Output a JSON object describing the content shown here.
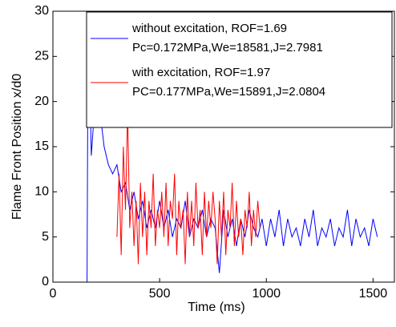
{
  "chart_data": {
    "type": "line",
    "xlabel": "Time (ms)",
    "ylabel": "Flame Front Position x/d0",
    "xlim": [
      0,
      1600
    ],
    "xticks": [
      0,
      500,
      1000,
      1500
    ],
    "ylim": [
      0,
      30
    ],
    "yticks": [
      0,
      5,
      10,
      15,
      20,
      25,
      30
    ],
    "grid": false,
    "legend": "upper right",
    "series": [
      {
        "name": "without excitation, ROF=1.69\nPc=0.172MPa,We=18581,J=2.7981",
        "color": "#0000ff",
        "x": [
          160,
          165,
          180,
          200,
          210,
          220,
          240,
          260,
          280,
          300,
          320,
          340,
          360,
          380,
          400,
          420,
          440,
          460,
          480,
          500,
          520,
          540,
          560,
          580,
          600,
          620,
          640,
          660,
          680,
          700,
          720,
          740,
          760,
          780,
          800,
          820,
          840,
          860,
          880,
          900,
          920,
          940,
          960,
          980,
          1000,
          1020,
          1040,
          1060,
          1080,
          1100,
          1120,
          1140,
          1160,
          1180,
          1200,
          1220,
          1240,
          1260,
          1280,
          1300,
          1320,
          1340,
          1360,
          1380,
          1400,
          1420,
          1440,
          1460,
          1480,
          1500,
          1520
        ],
        "values": [
          0,
          30,
          14,
          21,
          18,
          19,
          15,
          13,
          12,
          13,
          10,
          11,
          8,
          10,
          7,
          9,
          6,
          8,
          6,
          9,
          6,
          8,
          5,
          7,
          6,
          9,
          5,
          7,
          6,
          8,
          5,
          7,
          6,
          1,
          8,
          5,
          7,
          4,
          7,
          5,
          8,
          6,
          5,
          7,
          4,
          7,
          5,
          8,
          4,
          7,
          5,
          6,
          4,
          7,
          5,
          8,
          4,
          6,
          5,
          7,
          4,
          6,
          5,
          8,
          4,
          7,
          5,
          6,
          4,
          7,
          5
        ]
      },
      {
        "name": "with excitation, ROF=1.97\nPC=0.177MPa,We=15891,J=2.0804",
        "color": "#ff0000",
        "x": [
          300,
          310,
          320,
          330,
          340,
          350,
          360,
          370,
          380,
          390,
          400,
          410,
          420,
          430,
          440,
          450,
          460,
          470,
          480,
          490,
          500,
          510,
          520,
          530,
          540,
          550,
          560,
          570,
          580,
          590,
          600,
          610,
          620,
          630,
          640,
          650,
          660,
          670,
          680,
          690,
          700,
          710,
          720,
          730,
          740,
          750,
          760,
          770,
          780,
          790,
          800,
          810,
          820,
          830,
          840,
          850,
          860,
          870,
          880,
          890,
          900,
          910,
          920,
          930,
          940,
          950,
          960,
          970
        ],
        "values": [
          5,
          12,
          3,
          15,
          8,
          19,
          6,
          10,
          4,
          9,
          2,
          11,
          5,
          10,
          3,
          9,
          6,
          12,
          4,
          8,
          6,
          10,
          5,
          11,
          4,
          9,
          7,
          12,
          3,
          9,
          6,
          8,
          2,
          10,
          5,
          9,
          4,
          11,
          6,
          8,
          3,
          10,
          5,
          9,
          6,
          10,
          7,
          2,
          9,
          5,
          10,
          3,
          8,
          6,
          11,
          4,
          9,
          5,
          7,
          3,
          8,
          6,
          10,
          4,
          8,
          5,
          9,
          6
        ]
      }
    ]
  }
}
